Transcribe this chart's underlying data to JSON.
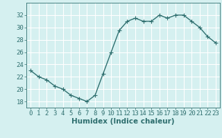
{
  "x": [
    0,
    1,
    2,
    3,
    4,
    5,
    6,
    7,
    8,
    9,
    10,
    11,
    12,
    13,
    14,
    15,
    16,
    17,
    18,
    19,
    20,
    21,
    22,
    23
  ],
  "y": [
    23,
    22,
    21.5,
    20.5,
    20,
    19,
    18.5,
    18,
    19,
    22.5,
    26,
    29.5,
    31,
    31.5,
    31,
    31,
    32,
    31.5,
    32,
    32,
    31,
    30,
    28.5,
    27.5
  ],
  "line_color": "#2e6e6e",
  "marker": "+",
  "marker_size": 4,
  "bg_color": "#d5f0f0",
  "grid_color": "#ffffff",
  "xlabel": "Humidex (Indice chaleur)",
  "ylim": [
    17,
    34
  ],
  "xlim": [
    -0.5,
    23.5
  ],
  "yticks": [
    18,
    20,
    22,
    24,
    26,
    28,
    30,
    32
  ],
  "xticks": [
    0,
    1,
    2,
    3,
    4,
    5,
    6,
    7,
    8,
    9,
    10,
    11,
    12,
    13,
    14,
    15,
    16,
    17,
    18,
    19,
    20,
    21,
    22,
    23
  ],
  "xlabel_fontsize": 7.5,
  "tick_fontsize": 6.5,
  "line_width": 1.0
}
